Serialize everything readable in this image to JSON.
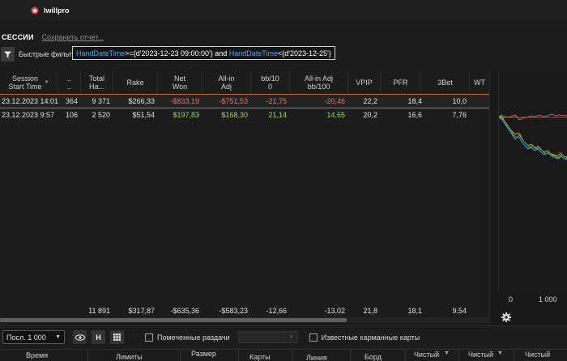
{
  "app": {
    "name": "Iwillpro",
    "logo_color": "#e0413d"
  },
  "section": {
    "title": "СЕССИИ",
    "save_report": "Сохранить отчет..."
  },
  "filter": {
    "label": "Быстрые фильт",
    "expr": {
      "f1": "HandDateTime",
      "op1": ">=",
      "v1": "{d'2023-12-23 09:00:00'}",
      "and": " and ",
      "f2": "HandDateTime",
      "op2": "<",
      "v2": "{d'2023-12-25'}"
    }
  },
  "table": {
    "columns": [
      {
        "l1": "Session",
        "l2": "Start Time"
      },
      {
        "l1": "..",
        "l2": ".."
      },
      {
        "l1": "Total",
        "l2": "Ha..."
      },
      {
        "l1": "Rake",
        "l2": ""
      },
      {
        "l1": "Net",
        "l2": "Won"
      },
      {
        "l1": "All-in",
        "l2": "Adj"
      },
      {
        "l1": "bb/10",
        "l2": "0"
      },
      {
        "l1": "All-in Adj",
        "l2": "bb/100"
      },
      {
        "l1": "VPIP",
        "l2": ""
      },
      {
        "l1": "PFR",
        "l2": ""
      },
      {
        "l1": "3Bet",
        "l2": ""
      },
      {
        "l1": "WT",
        "l2": ""
      }
    ],
    "rows": [
      {
        "start": "23.12.2023 14:01",
        "c": "364",
        "hands": "9 371",
        "rake": "$266,33",
        "net": "-$833,19",
        "allin": "-$751,53",
        "bb": "-21,75",
        "allinbb": "-20,46",
        "vpip": "22,2",
        "pfr": "18,4",
        "threebet": "10,0"
      },
      {
        "start": "23.12.2023 9:57",
        "c": "106",
        "hands": "2 520",
        "rake": "$51,54",
        "net": "$197,83",
        "allin": "$168,30",
        "bb": "21,14",
        "allinbb": "14,65",
        "vpip": "20,2",
        "pfr": "16,6",
        "threebet": "7,76"
      }
    ],
    "totals": {
      "hands": "11 891",
      "rake": "$317,87",
      "net": "-$635,36",
      "allin": "-$583,23",
      "bb": "-12,66",
      "allinbb": "-13,02",
      "vpip": "21,8",
      "pfr": "18,1",
      "threebet": "9,54"
    }
  },
  "chart": {
    "x_ticks": [
      "0",
      "1 000"
    ],
    "colors": {
      "green": "#4caf50",
      "orange": "#e98b2a",
      "red": "#d9534f",
      "blue": "#4aa3df"
    }
  },
  "bottom": {
    "select_value": "Посл. 1 000",
    "h_label": "H",
    "marked_hands": "Помеченные раздачи",
    "known_cards": "Известные карманные карты"
  },
  "subheader": {
    "cols": [
      "Время",
      "Лимиты",
      "Размер",
      "Карты",
      "Линия",
      "Борд",
      "Чистый",
      "Чистый",
      "Чистый"
    ]
  }
}
